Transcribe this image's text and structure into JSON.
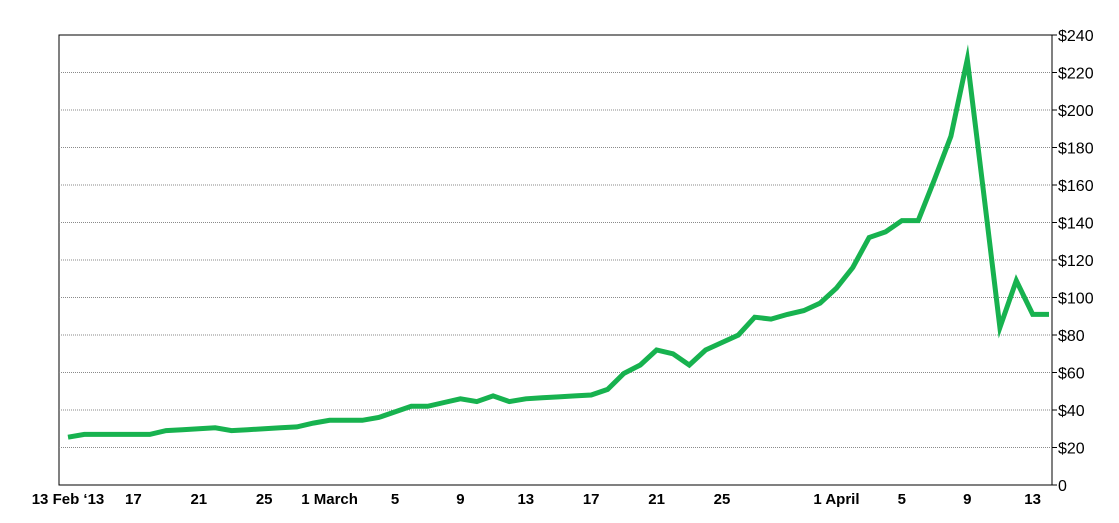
{
  "chart_data": {
    "type": "line",
    "title": "",
    "xlabel": "",
    "ylabel": "",
    "x_range": [
      "2013-02-13",
      "2013-04-14"
    ],
    "ylim": [
      0,
      240
    ],
    "y_ticks": [
      0,
      20,
      40,
      60,
      80,
      100,
      120,
      140,
      160,
      180,
      200,
      220,
      240
    ],
    "y_tick_labels": [
      "0",
      "$20",
      "$40",
      "$60",
      "$80",
      "$100",
      "$120",
      "$140",
      "$160",
      "$180",
      "$200",
      "$220",
      "$240"
    ],
    "x_ticks": [
      "2013-02-13",
      "2013-02-17",
      "2013-02-21",
      "2013-02-25",
      "2013-03-01",
      "2013-03-05",
      "2013-03-09",
      "2013-03-13",
      "2013-03-17",
      "2013-03-21",
      "2013-03-25",
      "2013-04-01",
      "2013-04-05",
      "2013-04-09",
      "2013-04-13"
    ],
    "x_tick_labels": [
      "13 Feb ‘13",
      "17",
      "21",
      "25",
      "1 March",
      "5",
      "9",
      "13",
      "17",
      "21",
      "25",
      "1 April",
      "5",
      "9",
      "13"
    ],
    "y_axis_side": "right",
    "grid": "horizontal dotted",
    "legend": "none",
    "line_color": "#17b24f",
    "series": [
      {
        "points": [
          [
            "2013-02-13",
            25.5
          ],
          [
            "2013-02-14",
            27
          ],
          [
            "2013-02-15",
            27
          ],
          [
            "2013-02-16",
            27
          ],
          [
            "2013-02-17",
            27
          ],
          [
            "2013-02-18",
            27
          ],
          [
            "2013-02-19",
            29
          ],
          [
            "2013-02-20",
            29.5
          ],
          [
            "2013-02-21",
            30
          ],
          [
            "2013-02-22",
            30.5
          ],
          [
            "2013-02-23",
            29
          ],
          [
            "2013-02-24",
            29.5
          ],
          [
            "2013-02-25",
            30
          ],
          [
            "2013-02-26",
            30.5
          ],
          [
            "2013-02-27",
            31
          ],
          [
            "2013-02-28",
            33
          ],
          [
            "2013-03-01",
            34.5
          ],
          [
            "2013-03-02",
            34.5
          ],
          [
            "2013-03-03",
            34.5
          ],
          [
            "2013-03-04",
            36
          ],
          [
            "2013-03-05",
            39
          ],
          [
            "2013-03-06",
            42
          ],
          [
            "2013-03-07",
            42
          ],
          [
            "2013-03-08",
            44
          ],
          [
            "2013-03-09",
            46
          ],
          [
            "2013-03-10",
            44.5
          ],
          [
            "2013-03-11",
            47.5
          ],
          [
            "2013-03-12",
            44.5
          ],
          [
            "2013-03-13",
            46
          ],
          [
            "2013-03-14",
            46.5
          ],
          [
            "2013-03-15",
            47
          ],
          [
            "2013-03-16",
            47.5
          ],
          [
            "2013-03-17",
            48
          ],
          [
            "2013-03-18",
            51
          ],
          [
            "2013-03-19",
            59.5
          ],
          [
            "2013-03-20",
            64
          ],
          [
            "2013-03-21",
            72
          ],
          [
            "2013-03-22",
            70
          ],
          [
            "2013-03-23",
            64
          ],
          [
            "2013-03-24",
            72
          ],
          [
            "2013-03-25",
            76
          ],
          [
            "2013-03-26",
            80
          ],
          [
            "2013-03-27",
            89.5
          ],
          [
            "2013-03-28",
            88.5
          ],
          [
            "2013-03-29",
            91
          ],
          [
            "2013-03-30",
            93
          ],
          [
            "2013-03-31",
            97
          ],
          [
            "2013-04-01",
            105
          ],
          [
            "2013-04-02",
            116
          ],
          [
            "2013-04-03",
            132
          ],
          [
            "2013-04-04",
            135
          ],
          [
            "2013-04-05",
            141
          ],
          [
            "2013-04-06",
            141
          ],
          [
            "2013-04-07",
            163
          ],
          [
            "2013-04-08",
            186
          ],
          [
            "2013-04-09",
            227
          ],
          [
            "2013-04-10",
            156
          ],
          [
            "2013-04-11",
            84
          ],
          [
            "2013-04-12",
            109
          ],
          [
            "2013-04-13",
            91
          ],
          [
            "2013-04-14",
            91
          ]
        ]
      }
    ]
  }
}
